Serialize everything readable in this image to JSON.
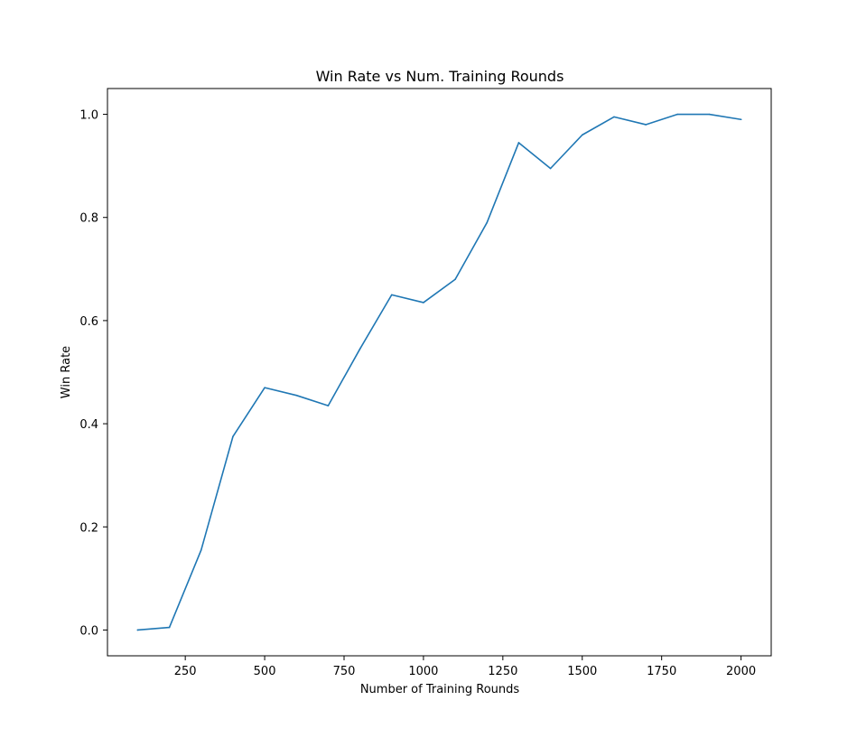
{
  "chart_data": {
    "type": "line",
    "title": "Win Rate vs Num. Training Rounds",
    "xlabel": "Number of Training Rounds",
    "ylabel": "Win Rate",
    "xlim": [
      5,
      2095
    ],
    "ylim": [
      -0.05,
      1.05
    ],
    "x_ticks": [
      250,
      500,
      750,
      1000,
      1250,
      1500,
      1750,
      2000
    ],
    "y_ticks": [
      0.0,
      0.2,
      0.4,
      0.6,
      0.8,
      1.0
    ],
    "y_tick_labels": [
      "0.0",
      "0.2",
      "0.4",
      "0.6",
      "0.8",
      "1.0"
    ],
    "grid": false,
    "series": [
      {
        "color": "#1f77b4",
        "x": [
          100,
          200,
          300,
          400,
          500,
          600,
          700,
          800,
          900,
          1000,
          1100,
          1200,
          1300,
          1400,
          1500,
          1600,
          1700,
          1800,
          1900,
          2000
        ],
        "y": [
          0.0,
          0.005,
          0.155,
          0.375,
          0.47,
          0.455,
          0.435,
          0.545,
          0.65,
          0.635,
          0.68,
          0.79,
          0.945,
          0.895,
          0.96,
          0.995,
          0.98,
          1.0,
          1.0,
          0.99
        ]
      }
    ]
  }
}
